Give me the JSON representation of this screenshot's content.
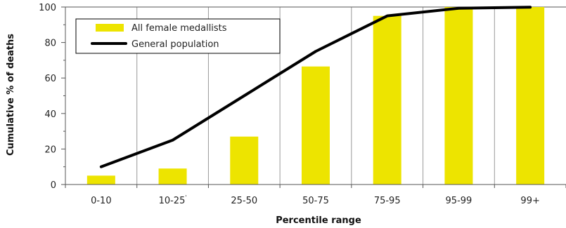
{
  "chart_data": {
    "type": "bar",
    "categories": [
      "0-10",
      "10-25",
      "25-50",
      "50-75",
      "75-95",
      "95-99",
      "99+"
    ],
    "category_markers": [
      "",
      "'",
      "",
      "",
      "",
      "",
      ""
    ],
    "series": [
      {
        "name": "All female medallists",
        "type": "bar",
        "color": "#ede400",
        "values": [
          5,
          9,
          27,
          66.5,
          95,
          100,
          100
        ]
      },
      {
        "name": "General population",
        "type": "line",
        "color": "#000000",
        "values": [
          10,
          25,
          50,
          75,
          95,
          99.3,
          99.9
        ]
      }
    ],
    "xlabel": "Percentile range",
    "ylabel": "Cumulative % of deaths",
    "ylim": [
      0,
      100
    ],
    "yticks": [
      0,
      20,
      40,
      60,
      80,
      100
    ],
    "grid": "vertical",
    "legend_position": "top-left"
  }
}
